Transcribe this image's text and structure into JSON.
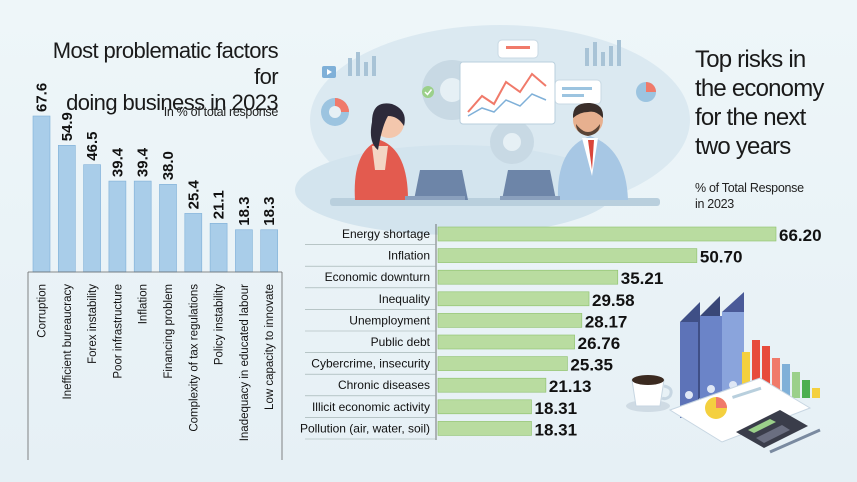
{
  "left": {
    "title_line1": "Most problematic factors for",
    "title_line2": "doing business in 2023",
    "subtitle": "In % of total response"
  },
  "right": {
    "title_line1": "Top risks in",
    "title_line2": "the economy",
    "title_line3": "for the next",
    "title_line4": "two years",
    "subtitle_line1": "% of Total Response",
    "subtitle_line2": "in 2023"
  },
  "colors": {
    "bar_blue": "#a9cde9",
    "bar_blue_edge": "#7fb0d8",
    "bar_green": "#b9dca0",
    "bar_green_edge": "#8cc06a"
  },
  "chart_data": [
    {
      "type": "bar",
      "orientation": "vertical",
      "title": "Most problematic factors for doing business in 2023",
      "ylabel": "In % of total response",
      "categories": [
        "Corruption",
        "Inefficient bureaucracy",
        "Forex instability",
        "Poor infrastructure",
        "Inflation",
        "Financing problem",
        "Complexity of tax regulations",
        "Policy instability",
        "Inadequacy in educated labour",
        "Low capacity to innovate"
      ],
      "values": [
        67.6,
        54.9,
        46.5,
        39.4,
        39.4,
        38.0,
        25.4,
        21.1,
        18.3,
        18.3
      ],
      "value_labels": [
        "67.6",
        "54.9",
        "46.5",
        "39.4",
        "39.4",
        "38.0",
        "25.4",
        "21.1",
        "18.3",
        "18.3"
      ],
      "ylim": [
        0,
        70
      ]
    },
    {
      "type": "bar",
      "orientation": "horizontal",
      "title": "Top risks in the economy for the next two years",
      "xlabel": "% of Total Response in 2023",
      "categories": [
        "Energy shortage",
        "Inflation",
        "Economic downturn",
        "Inequality",
        "Unemployment",
        "Public debt",
        "Cybercrime, insecurity",
        "Chronic diseases",
        "Illicit economic activity",
        "Pollution (air, water, soil)"
      ],
      "values": [
        66.2,
        50.7,
        35.21,
        29.58,
        28.17,
        26.76,
        25.35,
        21.13,
        18.31,
        18.31
      ],
      "value_labels": [
        "66.20",
        "50.70",
        "35.21",
        "29.58",
        "28.17",
        "26.76",
        "25.35",
        "21.13",
        "18.31",
        "18.31"
      ],
      "xlim": [
        0,
        66.2
      ]
    }
  ]
}
